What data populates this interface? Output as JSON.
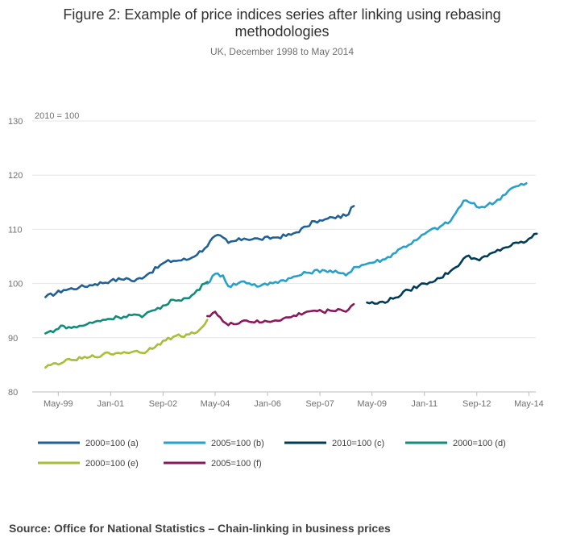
{
  "page": {
    "title": "Figure 2: Example of price indices series after linking using rebasing methodologies",
    "subtitle": "UK, December 1998 to May 2014",
    "source": "Source: Office for National Statistics – Chain-linking in business prices"
  },
  "chart_data": {
    "type": "line",
    "title": "Figure 2: Example of price indices series after linking using rebasing methodologies",
    "subtitle": "UK, December 1998 to May 2014",
    "unit_label": "2010 = 100",
    "xlabel": "",
    "ylabel": "",
    "x_range": [
      "Dec-98",
      "May-14"
    ],
    "ylim": [
      80,
      130
    ],
    "y_ticks": [
      80,
      90,
      100,
      110,
      120,
      130
    ],
    "x_ticks": [
      {
        "label": "May-99",
        "t": 1999.33
      },
      {
        "label": "Jan-01",
        "t": 2001.0
      },
      {
        "label": "Sep-02",
        "t": 2002.67
      },
      {
        "label": "May-04",
        "t": 2004.33
      },
      {
        "label": "Jan-06",
        "t": 2006.0
      },
      {
        "label": "Sep-07",
        "t": 2007.67
      },
      {
        "label": "May-09",
        "t": 2009.33
      },
      {
        "label": "Jan-11",
        "t": 2011.0
      },
      {
        "label": "Sep-12",
        "t": 2012.67
      },
      {
        "label": "May-14",
        "t": 2014.33
      }
    ],
    "grid": true,
    "legend_position": "bottom",
    "series": [
      {
        "name": "2000=100 (a)",
        "color": "#206095",
        "points": [
          [
            1998.92,
            97.5
          ],
          [
            1999.5,
            98.8
          ],
          [
            2000,
            99.3
          ],
          [
            2000.5,
            99.9
          ],
          [
            2001,
            100.5
          ],
          [
            2001.5,
            101.0
          ],
          [
            2001.75,
            100.4
          ],
          [
            2002.25,
            102.0
          ],
          [
            2002.75,
            104.0
          ],
          [
            2003,
            104.2
          ],
          [
            2003.5,
            104.5
          ],
          [
            2004,
            106.5
          ],
          [
            2004.33,
            108.8
          ],
          [
            2004.58,
            108.5
          ],
          [
            2004.75,
            107.5
          ],
          [
            2005.25,
            108.3
          ],
          [
            2005.75,
            108.2
          ],
          [
            2006.25,
            108.5
          ],
          [
            2006.75,
            109.0
          ],
          [
            2007.25,
            110.5
          ],
          [
            2007.5,
            111.5
          ],
          [
            2007.75,
            111.6
          ],
          [
            2008.08,
            112.2
          ],
          [
            2008.5,
            112.5
          ],
          [
            2008.75,
            114.3
          ]
        ]
      },
      {
        "name": "2005=100 (b)",
        "color": "#27A0CC",
        "points": [
          [
            2004.08,
            100.0
          ],
          [
            2004.33,
            101.8
          ],
          [
            2004.58,
            101.5
          ],
          [
            2004.75,
            99.5
          ],
          [
            2005.25,
            100.4
          ],
          [
            2005.75,
            99.5
          ],
          [
            2006.25,
            100.3
          ],
          [
            2006.75,
            101.0
          ],
          [
            2007.25,
            102.0
          ],
          [
            2007.75,
            102.5
          ],
          [
            2008.25,
            102.0
          ],
          [
            2008.5,
            101.5
          ],
          [
            2008.75,
            103.0
          ],
          [
            2009.25,
            103.8
          ],
          [
            2009.75,
            104.5
          ],
          [
            2010.25,
            106.5
          ],
          [
            2010.75,
            108.0
          ],
          [
            2011.08,
            109.5
          ],
          [
            2011.5,
            110.5
          ],
          [
            2011.83,
            111.5
          ],
          [
            2012.25,
            115.3
          ],
          [
            2012.5,
            114.8
          ],
          [
            2012.75,
            114.0
          ],
          [
            2013.25,
            115.0
          ],
          [
            2013.75,
            117.5
          ],
          [
            2014.25,
            118.5
          ]
        ]
      },
      {
        "name": "2010=100 (c)",
        "color": "#003C57",
        "points": [
          [
            2009.17,
            96.5
          ],
          [
            2009.5,
            96.3
          ],
          [
            2010,
            97.2
          ],
          [
            2010.5,
            98.8
          ],
          [
            2011,
            100.0
          ],
          [
            2011.5,
            101.0
          ],
          [
            2012,
            103.0
          ],
          [
            2012.33,
            105.0
          ],
          [
            2012.67,
            104.5
          ],
          [
            2013,
            105.0
          ],
          [
            2013.5,
            106.5
          ],
          [
            2014,
            107.5
          ],
          [
            2014.25,
            107.8
          ],
          [
            2014.58,
            109.2
          ]
        ]
      },
      {
        "name": "2000=100 (d)",
        "color": "#118C7B",
        "points": [
          [
            1998.92,
            90.8
          ],
          [
            1999.25,
            91.5
          ],
          [
            1999.5,
            92.2
          ],
          [
            1999.75,
            91.8
          ],
          [
            2000.25,
            92.5
          ],
          [
            2000.75,
            93.3
          ],
          [
            2001.25,
            93.8
          ],
          [
            2001.75,
            94.3
          ],
          [
            2002,
            93.8
          ],
          [
            2002.5,
            95.5
          ],
          [
            2002.75,
            96.0
          ],
          [
            2003,
            97.0
          ],
          [
            2003.5,
            97.3
          ],
          [
            2004,
            100.0
          ],
          [
            2004.08,
            100.3
          ]
        ]
      },
      {
        "name": "2000=100 (e)",
        "color": "#A8BD3A",
        "points": [
          [
            1998.92,
            84.5
          ],
          [
            1999.25,
            85.3
          ],
          [
            1999.5,
            85.5
          ],
          [
            1999.75,
            85.9
          ],
          [
            2000.25,
            86.3
          ],
          [
            2000.75,
            86.9
          ],
          [
            2001.25,
            87.2
          ],
          [
            2001.75,
            87.5
          ],
          [
            2002,
            87.2
          ],
          [
            2002.5,
            88.8
          ],
          [
            2002.75,
            89.5
          ],
          [
            2003,
            90.2
          ],
          [
            2003.5,
            90.6
          ],
          [
            2003.75,
            91.0
          ],
          [
            2004,
            92.5
          ],
          [
            2004.08,
            93.3
          ]
        ]
      },
      {
        "name": "2005=100 (f)",
        "color": "#871A5B",
        "points": [
          [
            2004.08,
            94.0
          ],
          [
            2004.33,
            94.8
          ],
          [
            2004.58,
            93.0
          ],
          [
            2004.75,
            92.3
          ],
          [
            2005.25,
            93.2
          ],
          [
            2005.75,
            92.8
          ],
          [
            2006.25,
            93.2
          ],
          [
            2006.75,
            93.8
          ],
          [
            2007.25,
            94.8
          ],
          [
            2007.5,
            95.0
          ],
          [
            2007.75,
            94.8
          ],
          [
            2008.25,
            95.3
          ],
          [
            2008.5,
            94.8
          ],
          [
            2008.75,
            96.2
          ]
        ]
      }
    ]
  }
}
